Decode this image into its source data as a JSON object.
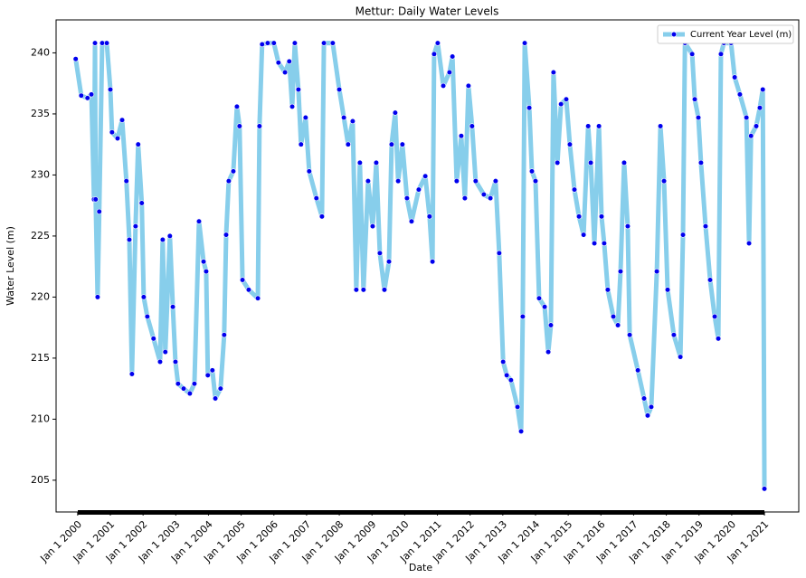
{
  "chart_data": {
    "type": "line",
    "title": "Mettur: Daily Water Levels",
    "xlabel": "Date",
    "ylabel": "Water Level (m)",
    "x": [
      1999.94,
      2000.11,
      2000.3,
      2000.42,
      2000.5,
      2000.53,
      2000.55,
      2000.61,
      2000.66,
      2000.75,
      2000.89,
      2001.0,
      2001.05,
      2001.22,
      2001.36,
      2001.49,
      2001.58,
      2001.66,
      2001.77,
      2001.85,
      2001.96,
      2002.02,
      2002.13,
      2002.32,
      2002.52,
      2002.6,
      2002.68,
      2002.82,
      2002.91,
      2002.99,
      2003.07,
      2003.24,
      2003.43,
      2003.57,
      2003.71,
      2003.85,
      2003.93,
      2003.98,
      2004.12,
      2004.21,
      2004.37,
      2004.48,
      2004.54,
      2004.62,
      2004.76,
      2004.87,
      2004.95,
      2005.04,
      2005.23,
      2005.51,
      2005.56,
      2005.64,
      2005.81,
      2006.0,
      2006.14,
      2006.34,
      2006.47,
      2006.56,
      2006.64,
      2006.75,
      2006.83,
      2006.97,
      2007.08,
      2007.3,
      2007.47,
      2007.53,
      2007.8,
      2008.0,
      2008.14,
      2008.27,
      2008.41,
      2008.52,
      2008.63,
      2008.74,
      2008.88,
      2009.02,
      2009.13,
      2009.24,
      2009.38,
      2009.52,
      2009.6,
      2009.71,
      2009.8,
      2009.93,
      2010.07,
      2010.21,
      2010.43,
      2010.63,
      2010.76,
      2010.85,
      2010.9,
      2011.01,
      2011.18,
      2011.37,
      2011.46,
      2011.59,
      2011.73,
      2011.84,
      2011.95,
      2012.06,
      2012.17,
      2012.42,
      2012.62,
      2012.78,
      2012.89,
      2013.01,
      2013.12,
      2013.25,
      2013.45,
      2013.56,
      2013.61,
      2013.67,
      2013.81,
      2013.89,
      2014.0,
      2014.11,
      2014.28,
      2014.39,
      2014.47,
      2014.55,
      2014.67,
      2014.78,
      2014.94,
      2015.05,
      2015.19,
      2015.33,
      2015.47,
      2015.61,
      2015.69,
      2015.8,
      2015.94,
      2016.02,
      2016.1,
      2016.21,
      2016.38,
      2016.52,
      2016.6,
      2016.71,
      2016.82,
      2016.88,
      2017.13,
      2017.32,
      2017.43,
      2017.54,
      2017.71,
      2017.82,
      2017.93,
      2018.04,
      2018.23,
      2018.43,
      2018.51,
      2018.57,
      2018.79,
      2018.87,
      2018.98,
      2019.06,
      2019.2,
      2019.34,
      2019.48,
      2019.59,
      2019.67,
      2019.76,
      2019.98,
      2020.09,
      2020.25,
      2020.45,
      2020.53,
      2020.59,
      2020.75,
      2020.86,
      2020.95,
      2021.0
    ],
    "series": [
      {
        "name": "Current Year Level (m)",
        "color": "#87ceeb",
        "marker_color": "#0000ee",
        "values": [
          239.5,
          236.5,
          236.3,
          236.6,
          228,
          240.8,
          228,
          220,
          227,
          240.8,
          240.8,
          237,
          233.5,
          233,
          234.5,
          229.5,
          224.7,
          213.7,
          225.8,
          232.5,
          227.7,
          220,
          218.4,
          216.6,
          214.7,
          224.7,
          215.5,
          225,
          219.2,
          214.7,
          212.9,
          212.5,
          212.1,
          212.9,
          226.2,
          222.9,
          222.1,
          213.6,
          214,
          211.7,
          212.5,
          216.9,
          225.1,
          229.5,
          230.3,
          235.6,
          234,
          221.4,
          220.6,
          219.9,
          234,
          240.7,
          240.8,
          240.8,
          239.2,
          238.4,
          239.3,
          235.6,
          240.8,
          237,
          232.5,
          234.7,
          230.3,
          228.1,
          226.6,
          240.8,
          240.8,
          237,
          234.7,
          232.5,
          234.4,
          220.6,
          231,
          220.6,
          229.5,
          225.8,
          231,
          223.6,
          220.6,
          222.9,
          232.5,
          235.1,
          229.5,
          232.5,
          228.1,
          226.2,
          228.8,
          229.9,
          226.6,
          222.9,
          239.9,
          240.8,
          237.3,
          238.4,
          239.7,
          229.5,
          233.2,
          228.1,
          237.3,
          234,
          229.5,
          228.4,
          228.1,
          229.5,
          223.6,
          214.7,
          213.6,
          213.2,
          211,
          209,
          218.4,
          240.8,
          235.5,
          230.3,
          229.5,
          219.9,
          219.2,
          215.5,
          217.7,
          238.4,
          231,
          235.8,
          236.2,
          232.5,
          228.8,
          226.6,
          225.1,
          234,
          231,
          224.4,
          234,
          226.6,
          224.4,
          220.6,
          218.4,
          217.7,
          222.1,
          231,
          225.8,
          216.9,
          214,
          211.7,
          210.3,
          211,
          222.1,
          234,
          229.5,
          220.6,
          216.9,
          215.1,
          225.1,
          240.8,
          239.9,
          236.2,
          234.7,
          231,
          225.8,
          221.4,
          218.4,
          216.6,
          239.9,
          240.8,
          240.8,
          238,
          236.6,
          234.7,
          224.4,
          233.2,
          234,
          235.5,
          237,
          204.3
        ]
      }
    ],
    "xlim": [
      1999.34,
      2022.05
    ],
    "ylim": [
      202.4,
      242.7
    ],
    "xticks": [
      {
        "value": 2000,
        "label": "Jan 1 2000"
      },
      {
        "value": 2001,
        "label": "Jan 1 2001"
      },
      {
        "value": 2002,
        "label": "Jan 1 2002"
      },
      {
        "value": 2003,
        "label": "Jan 1 2003"
      },
      {
        "value": 2004,
        "label": "Jan 1 2004"
      },
      {
        "value": 2005,
        "label": "Jan 1 2005"
      },
      {
        "value": 2006,
        "label": "Jan 1 2006"
      },
      {
        "value": 2007,
        "label": "Jan 1 2007"
      },
      {
        "value": 2008,
        "label": "Jan 1 2008"
      },
      {
        "value": 2009,
        "label": "Jan 1 2009"
      },
      {
        "value": 2010,
        "label": "Jan 1 2010"
      },
      {
        "value": 2011,
        "label": "Jan 1 2011"
      },
      {
        "value": 2012,
        "label": "Jan 1 2012"
      },
      {
        "value": 2013,
        "label": "Jan 1 2013"
      },
      {
        "value": 2014,
        "label": "Jan 1 2014"
      },
      {
        "value": 2015,
        "label": "Jan 1 2015"
      },
      {
        "value": 2016,
        "label": "Jan 1 2016"
      },
      {
        "value": 2017,
        "label": "Jan 1 2017"
      },
      {
        "value": 2018,
        "label": "Jan 1 2018"
      },
      {
        "value": 2019,
        "label": "Jan 1 2019"
      },
      {
        "value": 2020,
        "label": "Jan 1 2020"
      },
      {
        "value": 2021,
        "label": "Jan 1 2021"
      }
    ],
    "yticks": [
      205,
      210,
      215,
      220,
      225,
      230,
      235,
      240
    ],
    "legend": "upper right"
  }
}
